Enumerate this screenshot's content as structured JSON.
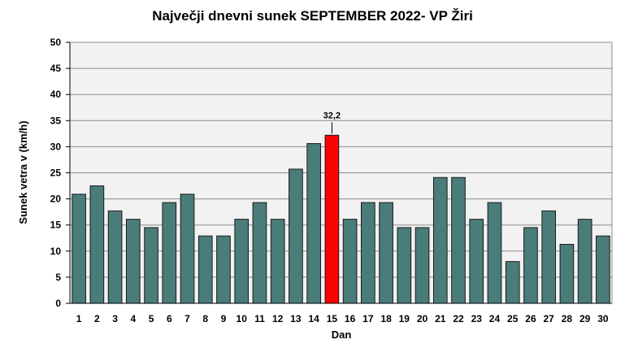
{
  "chart_data": {
    "type": "bar",
    "title": "Največji dnevni sunek SEPTEMBER  2022- VP Žiri",
    "xlabel": "Dan",
    "ylabel": "Sunek vetra  v (km/h)",
    "ylim": [
      0,
      50
    ],
    "ytick_step": 5,
    "grid": true,
    "legend": "none",
    "categories": [
      "1",
      "2",
      "3",
      "4",
      "5",
      "6",
      "7",
      "8",
      "9",
      "10",
      "11",
      "12",
      "13",
      "14",
      "15",
      "16",
      "17",
      "18",
      "19",
      "20",
      "21",
      "22",
      "23",
      "24",
      "25",
      "26",
      "27",
      "28",
      "29",
      "30"
    ],
    "values": [
      20.9,
      22.5,
      17.7,
      16.1,
      14.5,
      19.3,
      20.9,
      12.9,
      12.9,
      16.1,
      19.3,
      16.1,
      25.7,
      30.6,
      32.2,
      16.1,
      19.3,
      19.3,
      14.5,
      14.5,
      24.1,
      24.1,
      16.1,
      19.3,
      8.0,
      14.5,
      17.7,
      11.3,
      16.1,
      12.9
    ],
    "highlight": {
      "category": "15",
      "value_label": "32,2"
    },
    "colors": {
      "bar": "#4a7c7a",
      "highlight": "#ff0000",
      "plot_background": "#f2f2f2",
      "grid": "#8c8c8c"
    }
  }
}
